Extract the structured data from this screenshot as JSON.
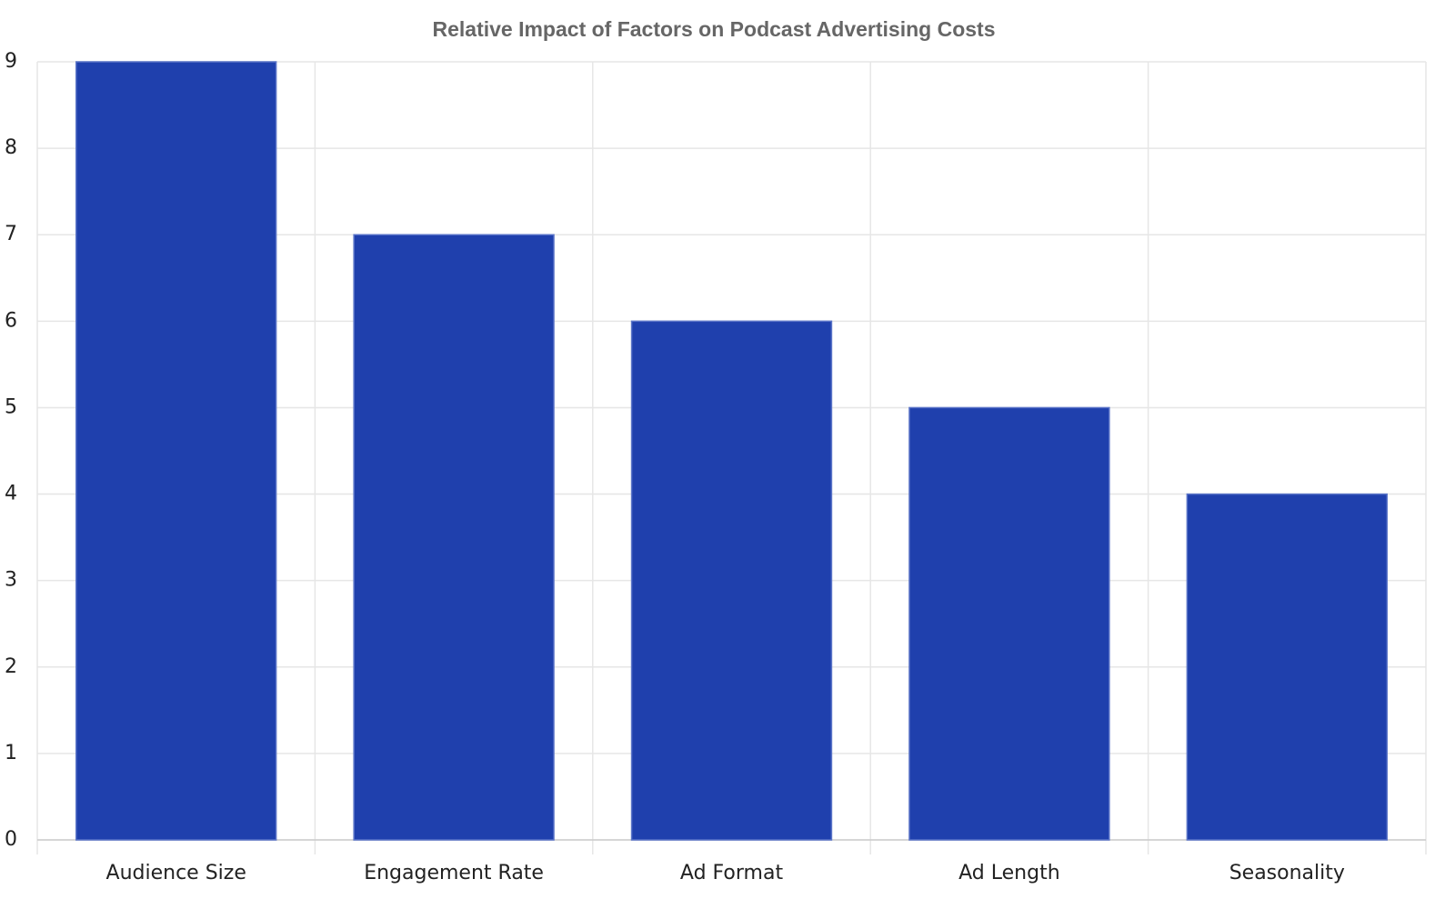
{
  "chart_data": {
    "type": "bar",
    "title": "Relative Impact of Factors on Podcast Advertising Costs",
    "categories": [
      "Audience Size",
      "Engagement Rate",
      "Ad Format",
      "Ad Length",
      "Seasonality"
    ],
    "values": [
      9,
      7,
      6,
      5,
      4
    ],
    "color": "#1f40ad",
    "ylim": [
      0,
      9
    ],
    "yticks": [
      0,
      1,
      2,
      3,
      4,
      5,
      6,
      7,
      8,
      9
    ],
    "grid": true
  }
}
